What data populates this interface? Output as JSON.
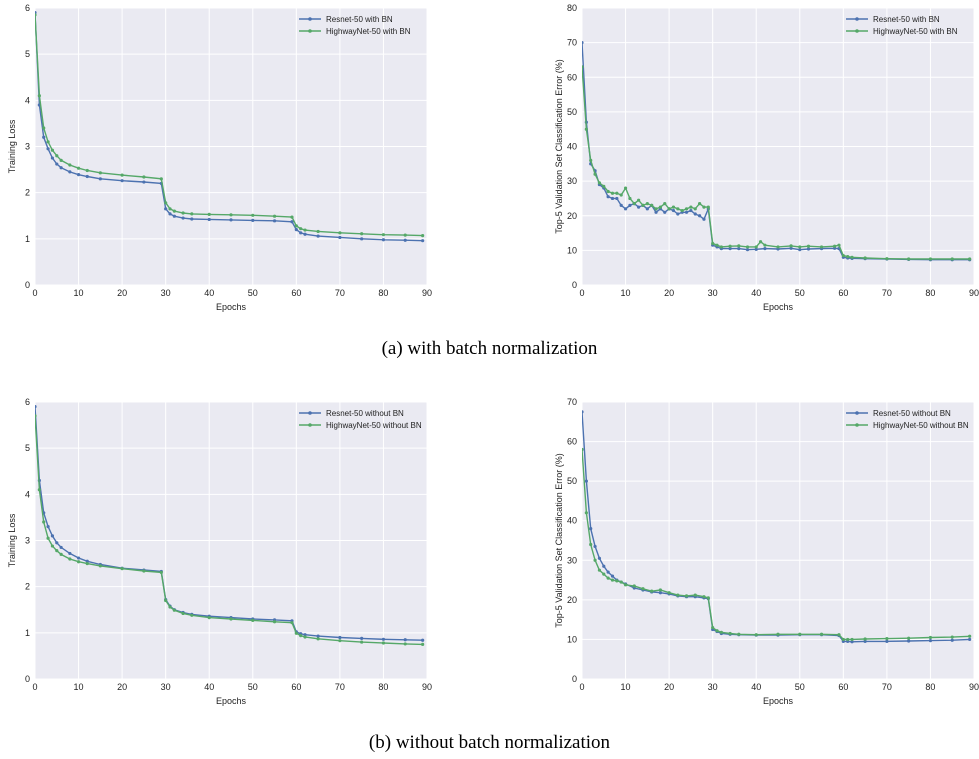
{
  "captions": {
    "a": "(a) with batch normalization",
    "b": "(b) without batch normalization"
  },
  "colors": {
    "resnet": "#4c72b0",
    "highway": "#55a868",
    "plot_bg": "#eaeaf2",
    "grid": "#ffffff"
  },
  "chart_data": [
    {
      "type": "line",
      "xlabel": "Epochs",
      "ylabel": "Training Loss",
      "xlim": [
        0,
        90
      ],
      "ylim": [
        0,
        6
      ],
      "xticks": [
        0,
        10,
        20,
        30,
        40,
        50,
        60,
        70,
        80,
        90
      ],
      "yticks": [
        0,
        1,
        2,
        3,
        4,
        5,
        6
      ],
      "grid": true,
      "legend": "top-right",
      "series": [
        {
          "name": "Resnet-50 with BN",
          "color": "#4c72b0",
          "x": [
            0,
            1,
            2,
            3,
            4,
            5,
            6,
            8,
            10,
            12,
            15,
            20,
            25,
            29,
            30,
            31,
            32,
            34,
            36,
            40,
            45,
            50,
            55,
            59,
            60,
            61,
            62,
            65,
            70,
            75,
            80,
            85,
            89
          ],
          "y": [
            5.9,
            3.9,
            3.2,
            2.95,
            2.75,
            2.62,
            2.54,
            2.45,
            2.39,
            2.35,
            2.3,
            2.26,
            2.23,
            2.2,
            1.65,
            1.54,
            1.49,
            1.45,
            1.43,
            1.42,
            1.41,
            1.4,
            1.39,
            1.37,
            1.2,
            1.13,
            1.1,
            1.06,
            1.03,
            1.0,
            0.98,
            0.97,
            0.96
          ]
        },
        {
          "name": "HighwayNet-50 with BN",
          "color": "#55a868",
          "x": [
            0,
            1,
            2,
            3,
            4,
            5,
            6,
            8,
            10,
            12,
            15,
            20,
            25,
            29,
            30,
            31,
            32,
            34,
            36,
            40,
            45,
            50,
            55,
            59,
            60,
            61,
            62,
            65,
            70,
            75,
            80,
            85,
            89
          ],
          "y": [
            5.85,
            4.1,
            3.4,
            3.1,
            2.92,
            2.8,
            2.7,
            2.6,
            2.53,
            2.48,
            2.43,
            2.38,
            2.34,
            2.3,
            1.78,
            1.65,
            1.6,
            1.56,
            1.54,
            1.53,
            1.52,
            1.51,
            1.49,
            1.47,
            1.28,
            1.22,
            1.19,
            1.16,
            1.13,
            1.11,
            1.09,
            1.08,
            1.07
          ]
        }
      ]
    },
    {
      "type": "line",
      "xlabel": "Epochs",
      "ylabel": "Top-5 Validation Set Classification Error (%)",
      "xlim": [
        0,
        90
      ],
      "ylim": [
        0,
        80
      ],
      "xticks": [
        0,
        10,
        20,
        30,
        40,
        50,
        60,
        70,
        80,
        90
      ],
      "yticks": [
        0,
        10,
        20,
        30,
        40,
        50,
        60,
        70,
        80
      ],
      "grid": true,
      "legend": "top-right",
      "series": [
        {
          "name": "Resnet-50 with BN",
          "color": "#4c72b0",
          "x": [
            0,
            1,
            2,
            3,
            4,
            5,
            6,
            7,
            8,
            9,
            10,
            11,
            12,
            13,
            14,
            15,
            16,
            17,
            18,
            19,
            20,
            21,
            22,
            23,
            24,
            25,
            26,
            27,
            28,
            29,
            30,
            31,
            32,
            34,
            36,
            38,
            40,
            42,
            45,
            48,
            50,
            52,
            55,
            58,
            59,
            60,
            61,
            62,
            65,
            70,
            75,
            80,
            85,
            89
          ],
          "y": [
            70,
            47,
            35,
            33,
            29,
            28,
            25.5,
            25,
            25,
            23,
            22,
            23,
            23.5,
            22.5,
            23,
            22,
            23,
            21,
            22,
            21,
            22,
            21.5,
            20.5,
            21,
            21,
            21.5,
            20.5,
            20,
            19,
            22,
            11.5,
            11,
            10.5,
            10.5,
            10.5,
            10.2,
            10.3,
            10.5,
            10.4,
            10.6,
            10.2,
            10.4,
            10.5,
            10.6,
            10.5,
            8,
            7.8,
            7.7,
            7.6,
            7.5,
            7.4,
            7.3,
            7.3,
            7.3
          ]
        },
        {
          "name": "HighwayNet-50 with BN",
          "color": "#55a868",
          "x": [
            0,
            1,
            2,
            3,
            4,
            5,
            6,
            7,
            8,
            9,
            10,
            11,
            12,
            13,
            14,
            15,
            16,
            17,
            18,
            19,
            20,
            21,
            22,
            23,
            24,
            25,
            26,
            27,
            28,
            29,
            30,
            31,
            32,
            34,
            36,
            38,
            40,
            41,
            42,
            45,
            48,
            50,
            52,
            55,
            58,
            59,
            60,
            61,
            62,
            65,
            70,
            75,
            80,
            85,
            89
          ],
          "y": [
            63,
            45,
            36,
            32,
            29.5,
            28.5,
            27,
            26.5,
            26.5,
            26,
            28,
            25,
            23.5,
            24.5,
            23,
            23.5,
            23,
            22,
            22.5,
            23.5,
            22,
            22.5,
            22,
            21.5,
            22,
            22.5,
            22,
            23.5,
            22.5,
            22.5,
            12,
            11.5,
            11,
            11.2,
            11.3,
            11,
            11,
            12.5,
            11.5,
            11,
            11.3,
            11,
            11.2,
            11,
            11.2,
            11.5,
            8.5,
            8.2,
            8,
            7.8,
            7.6,
            7.5,
            7.5,
            7.5,
            7.5
          ]
        }
      ]
    },
    {
      "type": "line",
      "xlabel": "Epochs",
      "ylabel": "Training Loss",
      "xlim": [
        0,
        90
      ],
      "ylim": [
        0,
        6
      ],
      "xticks": [
        0,
        10,
        20,
        30,
        40,
        50,
        60,
        70,
        80,
        90
      ],
      "yticks": [
        0,
        1,
        2,
        3,
        4,
        5,
        6
      ],
      "grid": true,
      "legend": "top-right",
      "series": [
        {
          "name": "Resnet-50 without BN",
          "color": "#4c72b0",
          "x": [
            0,
            1,
            2,
            3,
            4,
            5,
            6,
            8,
            10,
            12,
            15,
            20,
            25,
            29,
            30,
            31,
            32,
            34,
            36,
            40,
            45,
            50,
            55,
            59,
            60,
            61,
            62,
            65,
            70,
            75,
            80,
            85,
            89
          ],
          "y": [
            5.9,
            4.3,
            3.6,
            3.3,
            3.1,
            2.95,
            2.85,
            2.72,
            2.62,
            2.55,
            2.48,
            2.4,
            2.36,
            2.33,
            1.72,
            1.58,
            1.5,
            1.44,
            1.4,
            1.36,
            1.33,
            1.3,
            1.28,
            1.26,
            1.02,
            0.98,
            0.96,
            0.93,
            0.9,
            0.88,
            0.86,
            0.85,
            0.84
          ]
        },
        {
          "name": "HighwayNet-50 without BN",
          "color": "#55a868",
          "x": [
            0,
            1,
            2,
            3,
            4,
            5,
            6,
            8,
            10,
            12,
            15,
            20,
            25,
            29,
            30,
            31,
            32,
            34,
            36,
            40,
            45,
            50,
            55,
            59,
            60,
            61,
            62,
            65,
            70,
            75,
            80,
            85,
            89
          ],
          "y": [
            5.7,
            4.1,
            3.4,
            3.05,
            2.88,
            2.78,
            2.7,
            2.6,
            2.54,
            2.5,
            2.45,
            2.39,
            2.34,
            2.31,
            1.7,
            1.56,
            1.49,
            1.42,
            1.38,
            1.33,
            1.3,
            1.27,
            1.24,
            1.22,
            0.99,
            0.94,
            0.91,
            0.87,
            0.83,
            0.8,
            0.78,
            0.76,
            0.75
          ]
        }
      ]
    },
    {
      "type": "line",
      "xlabel": "Epochs",
      "ylabel": "Top-5 Validation Set Classification Error (%)",
      "xlim": [
        0,
        90
      ],
      "ylim": [
        0,
        70
      ],
      "xticks": [
        0,
        10,
        20,
        30,
        40,
        50,
        60,
        70,
        80,
        90
      ],
      "yticks": [
        0,
        10,
        20,
        30,
        40,
        50,
        60,
        70
      ],
      "grid": true,
      "legend": "top-right",
      "series": [
        {
          "name": "Resnet-50 without BN",
          "color": "#4c72b0",
          "x": [
            0,
            1,
            2,
            3,
            4,
            5,
            6,
            7,
            8,
            9,
            10,
            12,
            14,
            16,
            18,
            20,
            22,
            24,
            26,
            28,
            29,
            30,
            31,
            32,
            34,
            36,
            40,
            45,
            50,
            55,
            59,
            60,
            61,
            62,
            65,
            70,
            75,
            80,
            85,
            89
          ],
          "y": [
            67.5,
            50,
            38,
            33.5,
            30.5,
            28.5,
            27,
            26,
            25,
            24.5,
            24,
            23,
            22.5,
            22,
            21.8,
            21.5,
            21,
            20.8,
            20.8,
            20.5,
            20.3,
            12.5,
            12,
            11.5,
            11.3,
            11.2,
            11.1,
            11.1,
            11.2,
            11.2,
            11,
            9.5,
            9.5,
            9.4,
            9.5,
            9.5,
            9.6,
            9.7,
            9.8,
            10
          ]
        },
        {
          "name": "HighwayNet-50 without BN",
          "color": "#55a868",
          "x": [
            0,
            1,
            2,
            3,
            4,
            5,
            6,
            7,
            8,
            9,
            10,
            12,
            14,
            16,
            18,
            20,
            22,
            24,
            26,
            28,
            29,
            30,
            31,
            32,
            34,
            36,
            40,
            45,
            50,
            55,
            59,
            60,
            61,
            62,
            65,
            70,
            75,
            80,
            85,
            89
          ],
          "y": [
            58,
            42,
            34,
            30,
            27.5,
            26.5,
            25.5,
            25,
            24.8,
            24.5,
            23.8,
            23.5,
            22.8,
            22.2,
            22.5,
            21.8,
            21.2,
            21,
            21.2,
            20.8,
            20.5,
            13,
            12.2,
            11.8,
            11.5,
            11.3,
            11.2,
            11.3,
            11.3,
            11.3,
            11.2,
            10,
            10,
            10,
            10.1,
            10.2,
            10.3,
            10.5,
            10.6,
            10.8
          ]
        }
      ]
    }
  ]
}
